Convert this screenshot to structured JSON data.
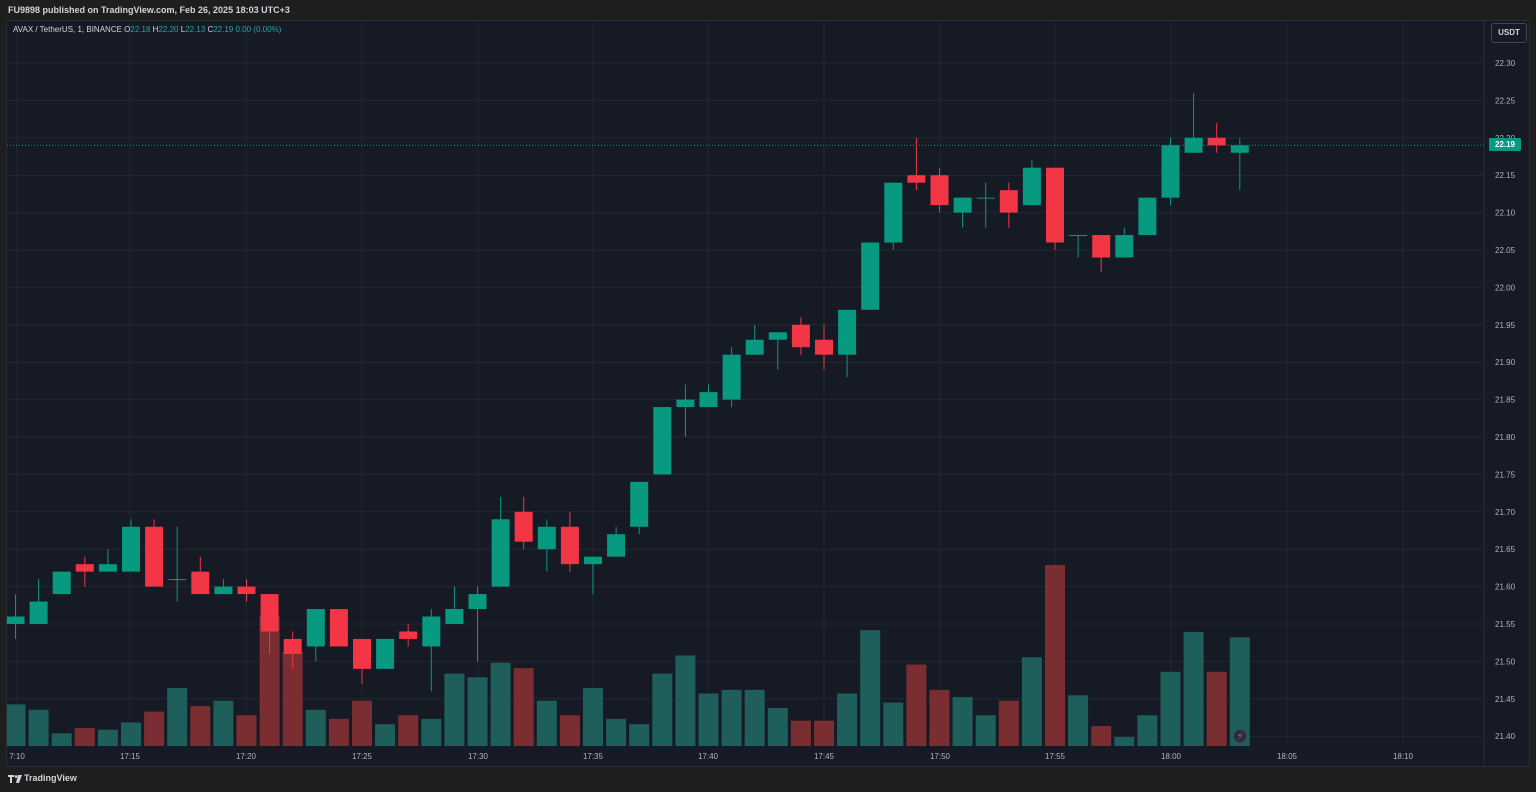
{
  "header": {
    "published": "FU9898 published on TradingView.com, Feb 26, 2025 18:03 UTC+3"
  },
  "legend": {
    "symbol": "AVAX / TetherUS, 1, BINANCE",
    "o_label": "O",
    "o_value": "22.18",
    "h_label": "H",
    "h_value": "22.20",
    "l_label": "L",
    "l_value": "22.13",
    "c_label": "C",
    "c_value": "22.19",
    "change": "0.00 (0.00%)"
  },
  "currency_button": "USDT",
  "last_price_label": "22.19",
  "footer": {
    "brand": "TradingView"
  },
  "colors": {
    "up": "#089981",
    "down": "#f23645",
    "up_volume": "#1f5f5b",
    "down_volume": "#7a2e31",
    "background": "#161a25",
    "grid": "#232733"
  },
  "chart_data": {
    "type": "candlestick",
    "y_ticks": [
      "22.30",
      "22.25",
      "22.20",
      "22.15",
      "22.10",
      "22.05",
      "22.00",
      "21.95",
      "21.90",
      "21.85",
      "21.80",
      "21.75",
      "21.70",
      "21.65",
      "21.60",
      "21.55",
      "21.50",
      "21.45",
      "21.40"
    ],
    "x_ticks": [
      "7:10",
      "17:15",
      "17:20",
      "17:25",
      "17:30",
      "17:35",
      "17:40",
      "17:45",
      "17:50",
      "17:55",
      "18:00",
      "18:05",
      "18:10"
    ],
    "last_price": 22.19,
    "candles": [
      {
        "o": 21.55,
        "h": 21.59,
        "l": 21.53,
        "c": 21.56
      },
      {
        "o": 21.55,
        "h": 21.61,
        "l": 21.55,
        "c": 21.58
      },
      {
        "o": 21.59,
        "h": 21.62,
        "l": 21.59,
        "c": 21.62
      },
      {
        "o": 21.63,
        "h": 21.64,
        "l": 21.6,
        "c": 21.62
      },
      {
        "o": 21.62,
        "h": 21.65,
        "l": 21.62,
        "c": 21.63
      },
      {
        "o": 21.62,
        "h": 21.69,
        "l": 21.62,
        "c": 21.68
      },
      {
        "o": 21.68,
        "h": 21.69,
        "l": 21.6,
        "c": 21.6
      },
      {
        "o": 21.61,
        "h": 21.68,
        "l": 21.58,
        "c": 21.61
      },
      {
        "o": 21.62,
        "h": 21.64,
        "l": 21.59,
        "c": 21.59
      },
      {
        "o": 21.59,
        "h": 21.61,
        "l": 21.59,
        "c": 21.6
      },
      {
        "o": 21.6,
        "h": 21.61,
        "l": 21.58,
        "c": 21.59
      },
      {
        "o": 21.59,
        "h": 21.59,
        "l": 21.51,
        "c": 21.54
      },
      {
        "o": 21.53,
        "h": 21.54,
        "l": 21.49,
        "c": 21.51
      },
      {
        "o": 21.52,
        "h": 21.57,
        "l": 21.5,
        "c": 21.57
      },
      {
        "o": 21.57,
        "h": 21.57,
        "l": 21.52,
        "c": 21.52
      },
      {
        "o": 21.53,
        "h": 21.53,
        "l": 21.47,
        "c": 21.49
      },
      {
        "o": 21.49,
        "h": 21.53,
        "l": 21.49,
        "c": 21.53
      },
      {
        "o": 21.54,
        "h": 21.55,
        "l": 21.52,
        "c": 21.53
      },
      {
        "o": 21.52,
        "h": 21.57,
        "l": 21.46,
        "c": 21.56
      },
      {
        "o": 21.55,
        "h": 21.6,
        "l": 21.55,
        "c": 21.57
      },
      {
        "o": 21.57,
        "h": 21.6,
        "l": 21.5,
        "c": 21.59
      },
      {
        "o": 21.6,
        "h": 21.72,
        "l": 21.6,
        "c": 21.69
      },
      {
        "o": 21.7,
        "h": 21.72,
        "l": 21.65,
        "c": 21.66
      },
      {
        "o": 21.65,
        "h": 21.69,
        "l": 21.62,
        "c": 21.68
      },
      {
        "o": 21.68,
        "h": 21.7,
        "l": 21.62,
        "c": 21.63
      },
      {
        "o": 21.63,
        "h": 21.64,
        "l": 21.59,
        "c": 21.64
      },
      {
        "o": 21.64,
        "h": 21.68,
        "l": 21.64,
        "c": 21.67
      },
      {
        "o": 21.68,
        "h": 21.74,
        "l": 21.67,
        "c": 21.74
      },
      {
        "o": 21.75,
        "h": 21.84,
        "l": 21.75,
        "c": 21.84
      },
      {
        "o": 21.84,
        "h": 21.87,
        "l": 21.8,
        "c": 21.85
      },
      {
        "o": 21.84,
        "h": 21.87,
        "l": 21.84,
        "c": 21.86
      },
      {
        "o": 21.85,
        "h": 21.92,
        "l": 21.84,
        "c": 21.91
      },
      {
        "o": 21.91,
        "h": 21.95,
        "l": 21.91,
        "c": 21.93
      },
      {
        "o": 21.93,
        "h": 21.94,
        "l": 21.89,
        "c": 21.94
      },
      {
        "o": 21.95,
        "h": 21.96,
        "l": 21.91,
        "c": 21.92
      },
      {
        "o": 21.93,
        "h": 21.95,
        "l": 21.89,
        "c": 21.91
      },
      {
        "o": 21.91,
        "h": 21.97,
        "l": 21.88,
        "c": 21.97
      },
      {
        "o": 21.97,
        "h": 22.06,
        "l": 21.97,
        "c": 22.06
      },
      {
        "o": 22.06,
        "h": 22.14,
        "l": 22.05,
        "c": 22.14
      },
      {
        "o": 22.15,
        "h": 22.2,
        "l": 22.13,
        "c": 22.14
      },
      {
        "o": 22.15,
        "h": 22.16,
        "l": 22.1,
        "c": 22.11
      },
      {
        "o": 22.1,
        "h": 22.12,
        "l": 22.08,
        "c": 22.12
      },
      {
        "o": 22.12,
        "h": 22.14,
        "l": 22.08,
        "c": 22.12
      },
      {
        "o": 22.13,
        "h": 22.14,
        "l": 22.08,
        "c": 22.1
      },
      {
        "o": 22.11,
        "h": 22.17,
        "l": 22.11,
        "c": 22.16
      },
      {
        "o": 22.16,
        "h": 22.16,
        "l": 22.05,
        "c": 22.06
      },
      {
        "o": 22.07,
        "h": 22.07,
        "l": 22.04,
        "c": 22.07
      },
      {
        "o": 22.07,
        "h": 22.07,
        "l": 22.02,
        "c": 22.04
      },
      {
        "o": 22.04,
        "h": 22.08,
        "l": 22.04,
        "c": 22.07
      },
      {
        "o": 22.07,
        "h": 22.12,
        "l": 22.07,
        "c": 22.12
      },
      {
        "o": 22.12,
        "h": 22.2,
        "l": 22.11,
        "c": 22.19
      },
      {
        "o": 22.18,
        "h": 22.26,
        "l": 22.18,
        "c": 22.2
      },
      {
        "o": 22.2,
        "h": 22.22,
        "l": 22.18,
        "c": 22.19
      },
      {
        "o": 22.18,
        "h": 22.2,
        "l": 22.13,
        "c": 22.19
      }
    ],
    "volume_relative": [
      0.23,
      0.2,
      0.07,
      0.1,
      0.09,
      0.13,
      0.19,
      0.32,
      0.22,
      0.25,
      0.17,
      0.72,
      0.52,
      0.2,
      0.15,
      0.25,
      0.12,
      0.17,
      0.15,
      0.4,
      0.38,
      0.46,
      0.43,
      0.25,
      0.17,
      0.32,
      0.15,
      0.12,
      0.4,
      0.5,
      0.29,
      0.31,
      0.31,
      0.21,
      0.14,
      0.14,
      0.29,
      0.64,
      0.24,
      0.45,
      0.31,
      0.27,
      0.17,
      0.25,
      0.49,
      1.0,
      0.28,
      0.11,
      0.05,
      0.17,
      0.41,
      0.63,
      0.41,
      0.6
    ]
  }
}
